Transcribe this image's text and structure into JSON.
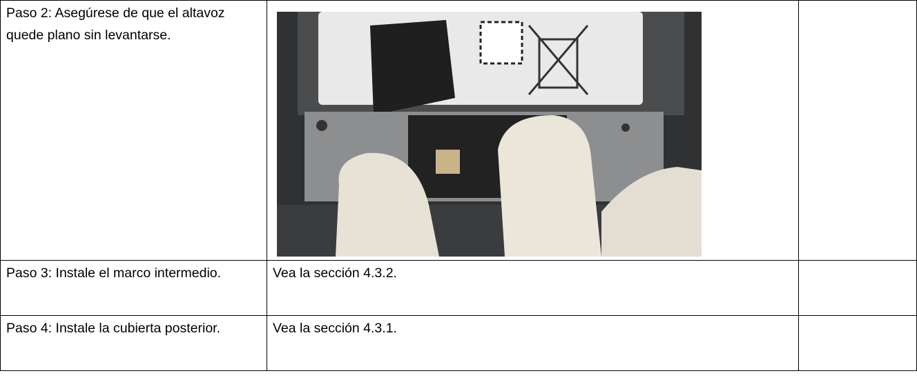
{
  "table": {
    "rows": [
      [
        "Paso 2: Asegúrese de que el altavoz quede plano sin levantarse."
      ],
      [
        "Paso 3: Instale el marco intermedio.",
        "Vea la sección 4.3.2."
      ],
      [
        "Paso 4: Instale la cubierta posterior.",
        "Vea la sección 4.3.1."
      ]
    ]
  }
}
